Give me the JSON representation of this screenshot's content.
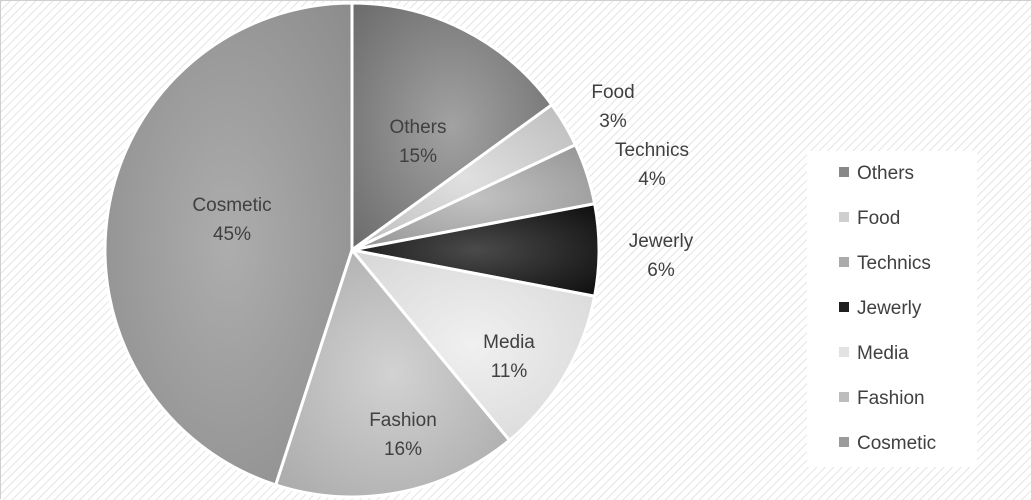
{
  "chart_data": {
    "type": "pie",
    "categories": [
      "Others",
      "Food",
      "Technics",
      "Jewerly",
      "Media",
      "Fashion",
      "Cosmetic"
    ],
    "values": [
      15,
      3,
      4,
      6,
      11,
      16,
      45
    ],
    "data_labels": [
      "15%",
      "3%",
      "4%",
      "6%",
      "11%",
      "16%",
      "45%"
    ],
    "title": "",
    "legend_position": "right",
    "slice_colors": [
      "#888888",
      "#cfcfcf",
      "#ababab",
      "#1f1f1f",
      "#e2e2e2",
      "#bdbdbd",
      "#9b9b9b"
    ],
    "background_pattern": "light-diagonal-stripes"
  }
}
